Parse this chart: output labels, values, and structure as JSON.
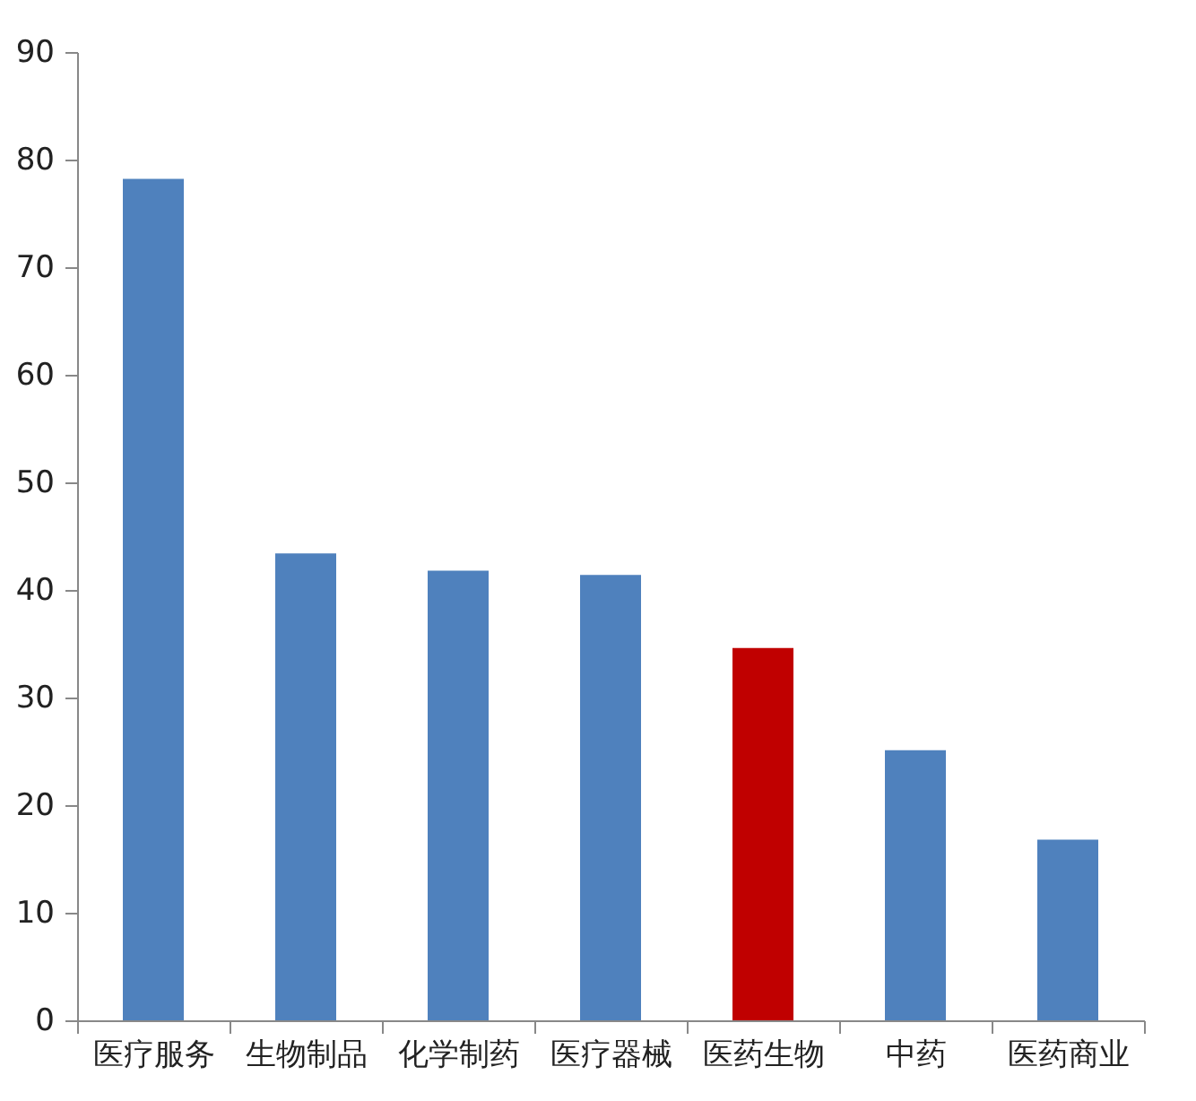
{
  "chart_data": {
    "type": "bar",
    "categories": [
      "医疗服务",
      "生物制品",
      "化学制药",
      "医疗器械",
      "医药生物",
      "中药",
      "医药商业"
    ],
    "values": [
      78.2,
      43.4,
      41.8,
      41.4,
      34.6,
      25.1,
      16.8
    ],
    "colors": [
      "#4f81bd",
      "#4f81bd",
      "#4f81bd",
      "#4f81bd",
      "#c00000",
      "#4f81bd",
      "#4f81bd"
    ],
    "ylim": [
      0,
      90
    ],
    "yticks": [
      0,
      10,
      20,
      30,
      40,
      50,
      60,
      70,
      80,
      90
    ],
    "grid": false
  }
}
